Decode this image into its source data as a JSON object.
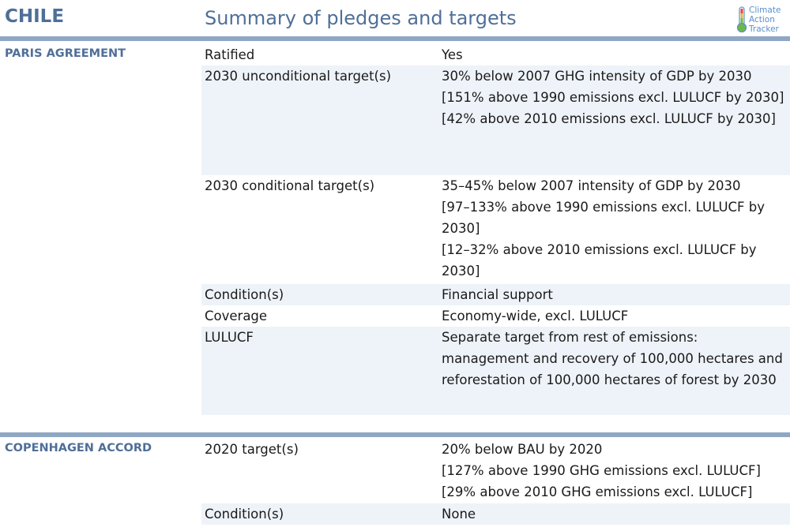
{
  "header": {
    "country": "CHILE",
    "title": "Summary of pledges and targets",
    "logo_lines": [
      "Climate",
      "Action",
      "Tracker"
    ]
  },
  "colors": {
    "heading": "#4f6f98",
    "rule": "#8fa7c3",
    "row_shade": "#eef3f9",
    "logo": "#5a8fc9"
  },
  "paris": {
    "label": "PARIS AGREEMENT",
    "rows": [
      {
        "label": "Ratified",
        "values": [
          "Yes"
        ]
      },
      {
        "label": "2030 unconditional target(s)",
        "values": [
          "30% below 2007 GHG intensity of GDP by 2030",
          "[151% above 1990 emissions excl. LULUCF by 2030]",
          "[42% above 2010 emissions excl. LULUCF by 2030]"
        ]
      },
      {
        "label": "2030 conditional target(s)",
        "values": [
          "35–45% below 2007 intensity of GDP by 2030",
          "[97–133% above 1990 emissions excl. LULUCF by",
          "2030]",
          "[12–32% above 2010 emissions excl. LULUCF by",
          "2030]"
        ]
      },
      {
        "label": "Condition(s)",
        "values": [
          "Financial support"
        ]
      },
      {
        "label": "Coverage",
        "values": [
          "Economy-wide, excl. LULUCF"
        ]
      },
      {
        "label": "LULUCF",
        "values": [
          "Separate target from rest of emissions:",
          "management and recovery of 100,000 hectares and",
          "reforestation of 100,000 hectares of forest by 2030"
        ]
      }
    ]
  },
  "copenhagen": {
    "label": "COPENHAGEN ACCORD",
    "rows": [
      {
        "label": "2020 target(s)",
        "values": [
          "20% below BAU by 2020",
          "[127% above 1990 GHG emissions excl. LULUCF]",
          "[29% above 2010 GHG emissions excl. LULUCF]"
        ]
      },
      {
        "label": "Condition(s)",
        "values": [
          "None"
        ]
      }
    ]
  }
}
